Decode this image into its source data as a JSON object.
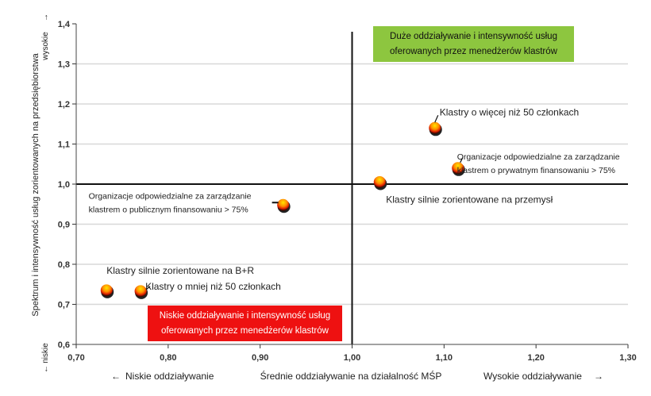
{
  "chart_data": {
    "type": "scatter",
    "xlabel": "Średnie oddziaływanie na działalność MŚP",
    "xlabel_left": "Niskie oddziaływanie",
    "xlabel_right": "Wysokie oddziaływanie",
    "ylabel": "Spektrum i intensywność usług zorientowanych na przedsiębiorstwa",
    "ylabel_top": "wysokie",
    "ylabel_bottom": "niskie",
    "xlim": [
      0.7,
      1.3
    ],
    "ylim": [
      0.6,
      1.4
    ],
    "x_ticks": [
      "0,70",
      "0,80",
      "0,90",
      "1,00",
      "1,10",
      "1,20",
      "1,30"
    ],
    "y_ticks": [
      "0,6",
      "0,7",
      "0,8",
      "0,9",
      "1,0",
      "1,1",
      "1,2",
      "1,3",
      "1,4"
    ],
    "grid": true,
    "reference_lines": {
      "x": 1.0,
      "y": 1.0
    },
    "points": [
      {
        "x": 1.09,
        "y": 1.14,
        "label": [
          "Klastry o więcej niż 50 członkach"
        ]
      },
      {
        "x": 1.115,
        "y": 1.04,
        "label": [
          "Organizacje odpowiedzialne za zarządzanie",
          "klastrem o prywatnym finansowaniu > 75%"
        ]
      },
      {
        "x": 1.03,
        "y": 1.005,
        "label": [
          "Klastry silnie zorientowane na przemysł"
        ]
      },
      {
        "x": 0.925,
        "y": 0.948,
        "label": [
          "Organizacje odpowiedzialne za zarządzanie",
          "klastrem o publicznym finansowaniu > 75%"
        ]
      },
      {
        "x": 0.733,
        "y": 0.735,
        "label": [
          "Klastry silnie zorientowane na B+R"
        ]
      },
      {
        "x": 0.77,
        "y": 0.733,
        "label": [
          "Klastry o mniej niż 50 członkach"
        ]
      }
    ],
    "quadrant_boxes": [
      {
        "lines": [
          "Duże oddziaływanie i intensywność usług",
          "oferowanych przez menedżerów klastrów"
        ],
        "color": "#8dc63f",
        "text_color": "#111111"
      },
      {
        "lines": [
          "Niskie oddziaływanie i intensywność usług",
          "oferowanych przez menedżerów klastrów"
        ],
        "color": "#ee1111",
        "text_color": "#ffffff"
      }
    ]
  }
}
